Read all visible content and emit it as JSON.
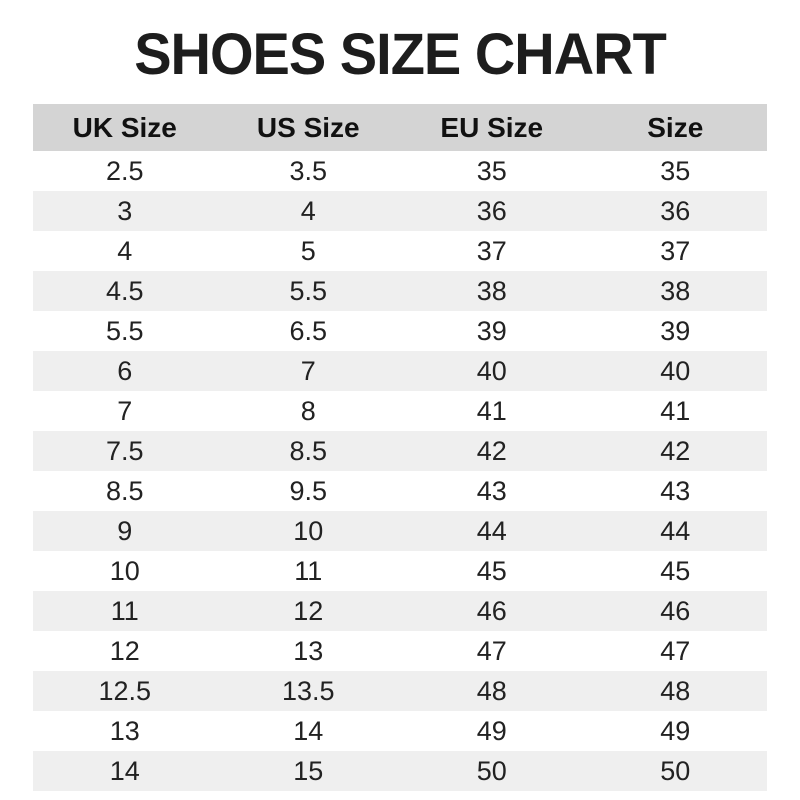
{
  "page": {
    "title": "SHOES SIZE CHART"
  },
  "colors": {
    "header_bg": "#d4d4d4",
    "stripe_bg": "#efefef",
    "title_text": "#1d1d1d",
    "cell_text": "#222222"
  },
  "chart_data": {
    "type": "table",
    "title": "SHOES SIZE CHART",
    "columns": [
      "UK Size",
      "US Size",
      "EU Size",
      "Size"
    ],
    "rows": [
      [
        "2.5",
        "3.5",
        "35",
        "35"
      ],
      [
        "3",
        "4",
        "36",
        "36"
      ],
      [
        "4",
        "5",
        "37",
        "37"
      ],
      [
        "4.5",
        "5.5",
        "38",
        "38"
      ],
      [
        "5.5",
        "6.5",
        "39",
        "39"
      ],
      [
        "6",
        "7",
        "40",
        "40"
      ],
      [
        "7",
        "8",
        "41",
        "41"
      ],
      [
        "7.5",
        "8.5",
        "42",
        "42"
      ],
      [
        "8.5",
        "9.5",
        "43",
        "43"
      ],
      [
        "9",
        "10",
        "44",
        "44"
      ],
      [
        "10",
        "11",
        "45",
        "45"
      ],
      [
        "11",
        "12",
        "46",
        "46"
      ],
      [
        "12",
        "13",
        "47",
        "47"
      ],
      [
        "12.5",
        "13.5",
        "48",
        "48"
      ],
      [
        "13",
        "14",
        "49",
        "49"
      ],
      [
        "14",
        "15",
        "50",
        "50"
      ]
    ],
    "layout": {
      "stripe_pattern": "even rows shaded",
      "alignment": "center",
      "grid": "off"
    }
  }
}
